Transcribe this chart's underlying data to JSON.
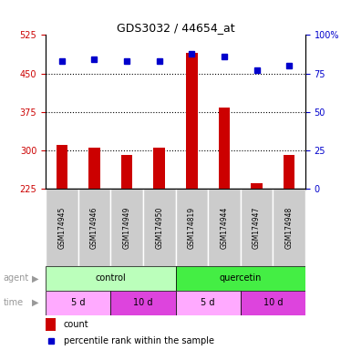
{
  "title": "GDS3032 / 44654_at",
  "samples": [
    "GSM174945",
    "GSM174946",
    "GSM174949",
    "GSM174950",
    "GSM174819",
    "GSM174944",
    "GSM174947",
    "GSM174948"
  ],
  "counts": [
    310,
    305,
    291,
    306,
    490,
    383,
    237,
    291
  ],
  "percentiles": [
    83,
    84,
    83,
    83,
    88,
    86,
    77,
    80
  ],
  "ylim_left": [
    225,
    525
  ],
  "ylim_right": [
    0,
    100
  ],
  "yticks_left": [
    225,
    300,
    375,
    450,
    525
  ],
  "yticks_right": [
    0,
    25,
    50,
    75,
    100
  ],
  "bar_color": "#cc0000",
  "dot_color": "#0000cc",
  "agent_groups": [
    {
      "label": "control",
      "start": 0,
      "end": 4,
      "color": "#bbffbb"
    },
    {
      "label": "quercetin",
      "start": 4,
      "end": 8,
      "color": "#44ee44"
    }
  ],
  "time_groups": [
    {
      "label": "5 d",
      "start": 0,
      "end": 2,
      "color": "#ffaaff"
    },
    {
      "label": "10 d",
      "start": 2,
      "end": 4,
      "color": "#dd44dd"
    },
    {
      "label": "5 d",
      "start": 4,
      "end": 6,
      "color": "#ffaaff"
    },
    {
      "label": "10 d",
      "start": 6,
      "end": 8,
      "color": "#dd44dd"
    }
  ],
  "sample_bg_color": "#cccccc",
  "legend_count_color": "#cc0000",
  "legend_pct_color": "#0000cc",
  "label_color": "#999999"
}
